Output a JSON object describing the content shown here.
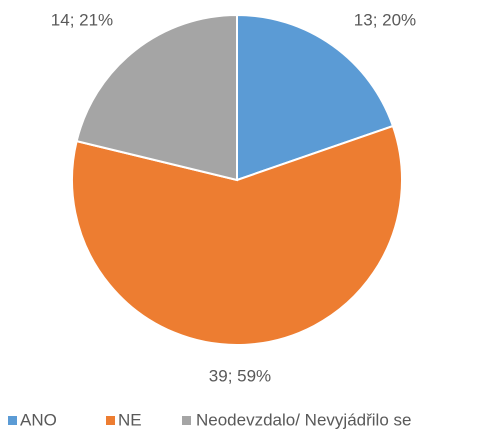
{
  "chart_data": {
    "type": "pie",
    "categories": [
      "ANO",
      "NE",
      "Neodevzdalo/ Nevyjádřilo se"
    ],
    "values": [
      13,
      39,
      14
    ],
    "value_labels": [
      "13; 20%",
      "39; 59%",
      "14; 21%"
    ],
    "colors": [
      "#5b9bd5",
      "#ed7d31",
      "#a5a5a5"
    ],
    "legend": "bottom"
  }
}
